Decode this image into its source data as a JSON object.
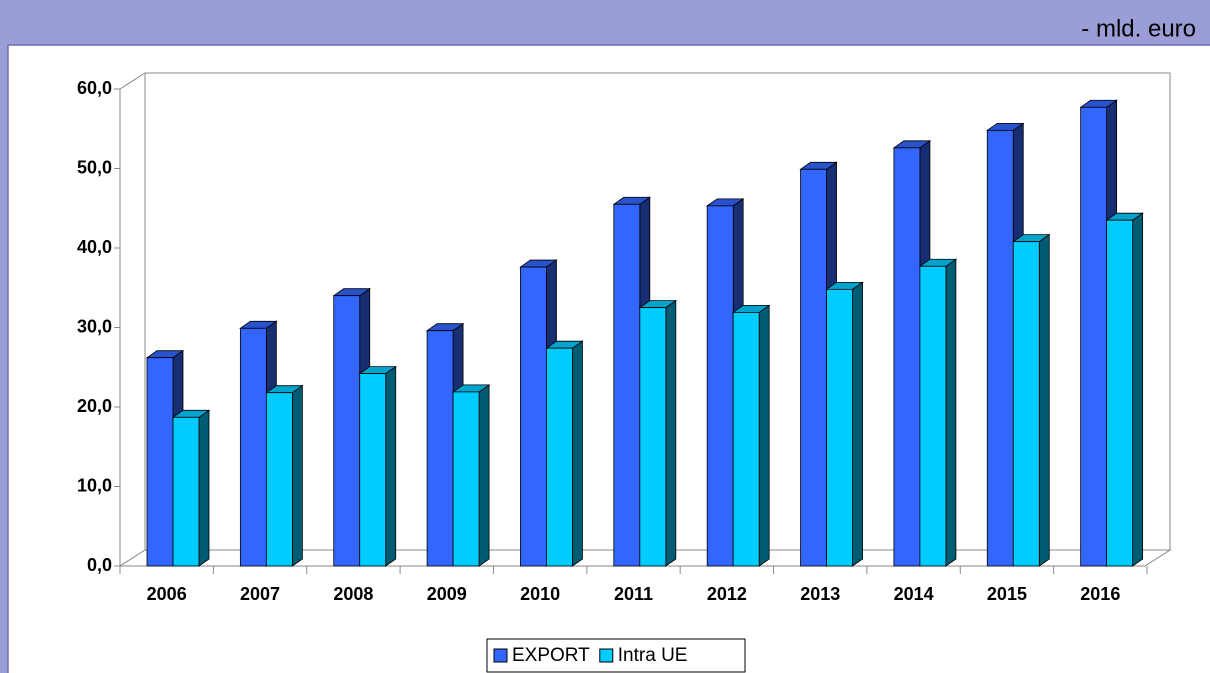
{
  "chart_data": {
    "type": "bar3d",
    "subtitle": "- mld. euro",
    "categories": [
      "2006",
      "2007",
      "2008",
      "2009",
      "2010",
      "2011",
      "2012",
      "2013",
      "2014",
      "2015",
      "2016"
    ],
    "series": [
      {
        "name": "EXPORT",
        "color": "#3366ff",
        "values": [
          26.2,
          29.9,
          34.0,
          29.6,
          37.6,
          45.5,
          45.3,
          49.9,
          52.6,
          54.8,
          57.7
        ]
      },
      {
        "name": "Intra UE",
        "color": "#00ccff",
        "values": [
          18.7,
          21.8,
          24.2,
          21.9,
          27.4,
          32.5,
          31.9,
          34.8,
          37.7,
          40.8,
          43.5
        ]
      }
    ],
    "ylim": [
      0,
      60
    ],
    "yticks": [
      {
        "value": 0,
        "label": "0,0"
      },
      {
        "value": 10,
        "label": "10,0"
      },
      {
        "value": 20,
        "label": "20,0"
      },
      {
        "value": 30,
        "label": "30,0"
      },
      {
        "value": 40,
        "label": "40,0"
      },
      {
        "value": 50,
        "label": "50,0"
      },
      {
        "value": 60,
        "label": "60,0"
      }
    ],
    "legend": "bottom"
  }
}
